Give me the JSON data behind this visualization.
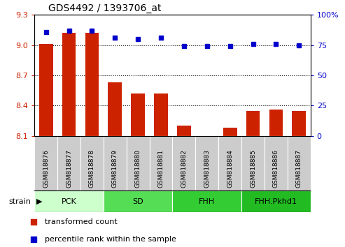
{
  "title": "GDS4492 / 1393706_at",
  "samples": [
    "GSM818876",
    "GSM818877",
    "GSM818878",
    "GSM818879",
    "GSM818880",
    "GSM818881",
    "GSM818882",
    "GSM818883",
    "GSM818884",
    "GSM818885",
    "GSM818886",
    "GSM818887"
  ],
  "transformed_count": [
    9.01,
    9.12,
    9.12,
    8.63,
    8.52,
    8.52,
    8.2,
    8.1,
    8.18,
    8.35,
    8.36,
    8.35
  ],
  "percentile_rank": [
    86,
    87,
    87,
    81,
    80,
    81,
    74,
    74,
    74,
    76,
    76,
    75
  ],
  "ylim_left": [
    8.1,
    9.3
  ],
  "ylim_right": [
    0,
    100
  ],
  "yticks_left": [
    8.1,
    8.4,
    8.7,
    9.0,
    9.3
  ],
  "yticks_right": [
    0,
    25,
    50,
    75,
    100
  ],
  "bar_color": "#cc2200",
  "dot_color": "#0000cc",
  "groups": [
    {
      "label": "PCK",
      "start": 0,
      "end": 3,
      "color": "#ccffcc"
    },
    {
      "label": "SD",
      "start": 3,
      "end": 6,
      "color": "#55dd55"
    },
    {
      "label": "FHH",
      "start": 6,
      "end": 9,
      "color": "#33cc33"
    },
    {
      "label": "FHH.Pkhd1",
      "start": 9,
      "end": 12,
      "color": "#22bb22"
    }
  ],
  "strain_label": "strain",
  "legend_bar_label": "transformed count",
  "legend_dot_label": "percentile rank within the sample",
  "tick_area_color": "#cccccc",
  "sample_cell_edge": "#ffffff"
}
